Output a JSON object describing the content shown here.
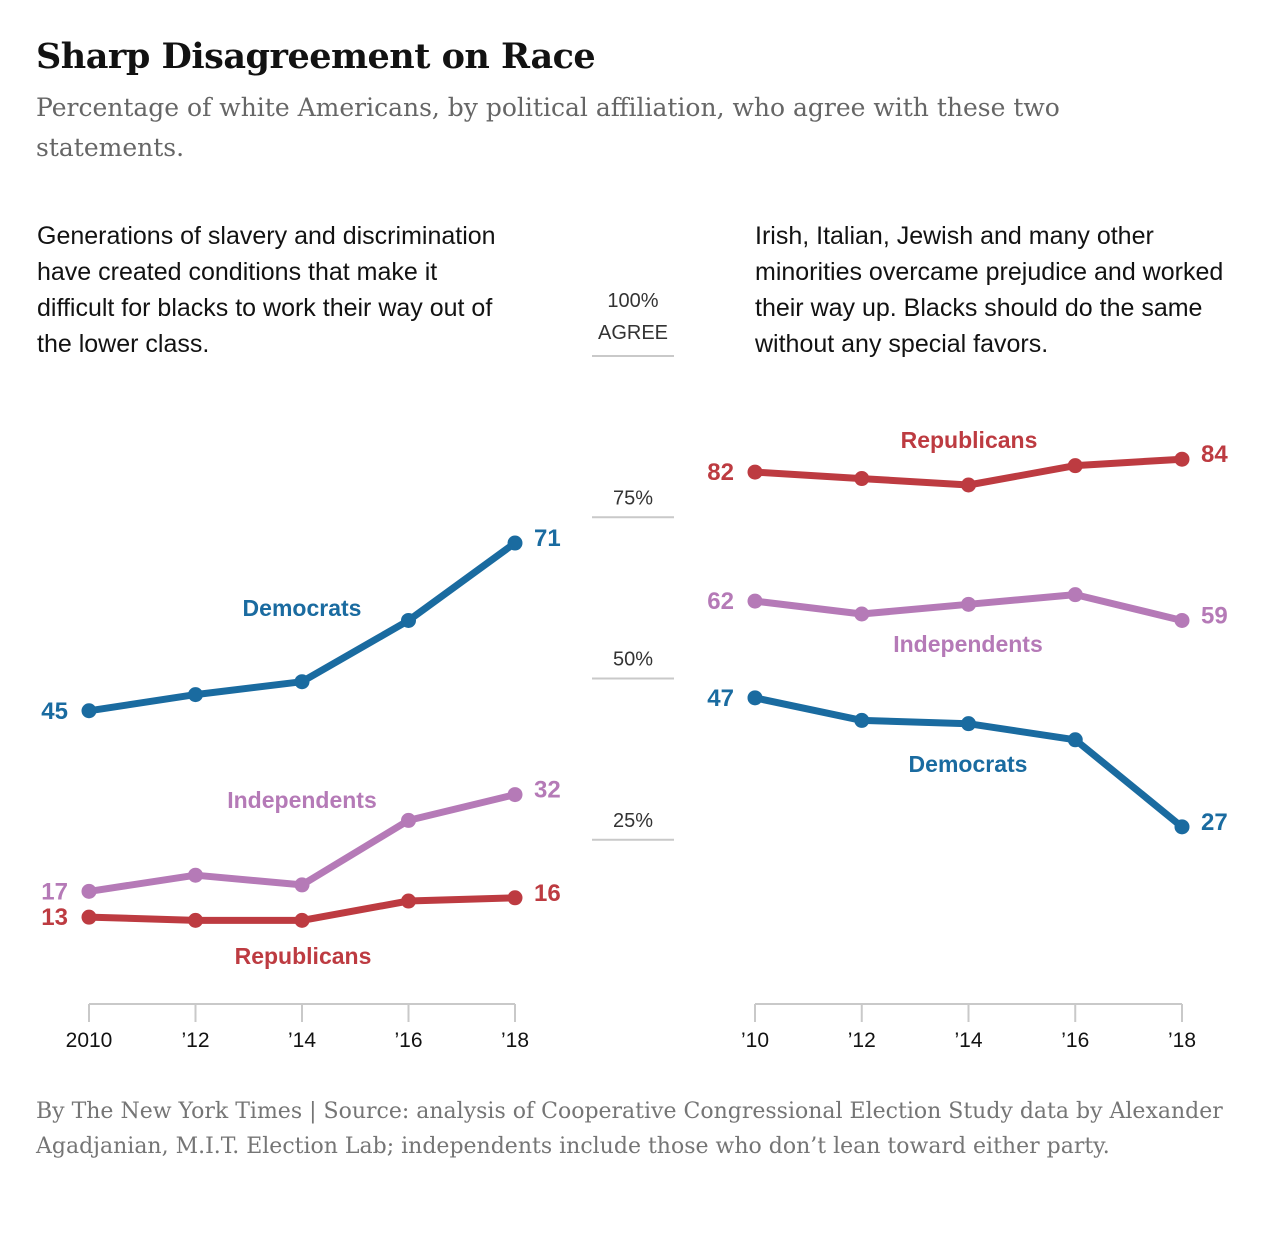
{
  "title": "Sharp Disagreement on Race",
  "subtitle": "Percentage of white Americans, by political affiliation, who agree with these two statements.",
  "footer": "By The New York Times | Source: analysis of Cooperative Congressional Election Study data by Alexander Agadjanian, M.I.T. Election Lab; independents include those who don’t lean toward either party.",
  "colors": {
    "Democrats": "#1a6ba0",
    "Independents": "#b57ab7",
    "Republicans": "#bd3b41",
    "axis": "#c9c9c9"
  },
  "scale": {
    "ticks": [
      {
        "value": 100,
        "label": "100%",
        "label2": "AGREE"
      },
      {
        "value": 75,
        "label": "75%"
      },
      {
        "value": 50,
        "label": "50%"
      },
      {
        "value": 25,
        "label": "25%"
      }
    ]
  },
  "chart_data": [
    {
      "type": "line",
      "title": "Generations of slavery and discrimination have created conditions that make it difficult for blacks to work their way out of the lower class.",
      "x": [
        2010,
        2012,
        2014,
        2016,
        2018
      ],
      "x_tick_labels": [
        "2010",
        "’12",
        "’14",
        "’16",
        "’18"
      ],
      "ylim": [
        0,
        100
      ],
      "series": [
        {
          "name": "Democrats",
          "values": [
            45,
            47.5,
            49.5,
            59,
            71
          ],
          "start_label": "45",
          "end_label": "71"
        },
        {
          "name": "Independents",
          "values": [
            17,
            19.5,
            18,
            28,
            32
          ],
          "start_label": "17",
          "end_label": "32"
        },
        {
          "name": "Republicans",
          "values": [
            13,
            12.5,
            12.5,
            15.5,
            16
          ],
          "start_label": "13",
          "end_label": "16"
        }
      ]
    },
    {
      "type": "line",
      "title": "Irish, Italian, Jewish and many other minorities overcame prejudice and worked their way up. Blacks should do the same without any special favors.",
      "x": [
        2010,
        2012,
        2014,
        2016,
        2018
      ],
      "x_tick_labels": [
        "’10",
        "’12",
        "’14",
        "’16",
        "’18"
      ],
      "ylim": [
        0,
        100
      ],
      "series": [
        {
          "name": "Republicans",
          "values": [
            82,
            81,
            80,
            83,
            84
          ],
          "start_label": "82",
          "end_label": "84"
        },
        {
          "name": "Independents",
          "values": [
            62,
            60,
            61.5,
            63,
            59
          ],
          "start_label": "62",
          "end_label": "59"
        },
        {
          "name": "Democrats",
          "values": [
            47,
            43.5,
            43,
            40.5,
            27
          ],
          "start_label": "47",
          "end_label": "27"
        }
      ]
    }
  ]
}
